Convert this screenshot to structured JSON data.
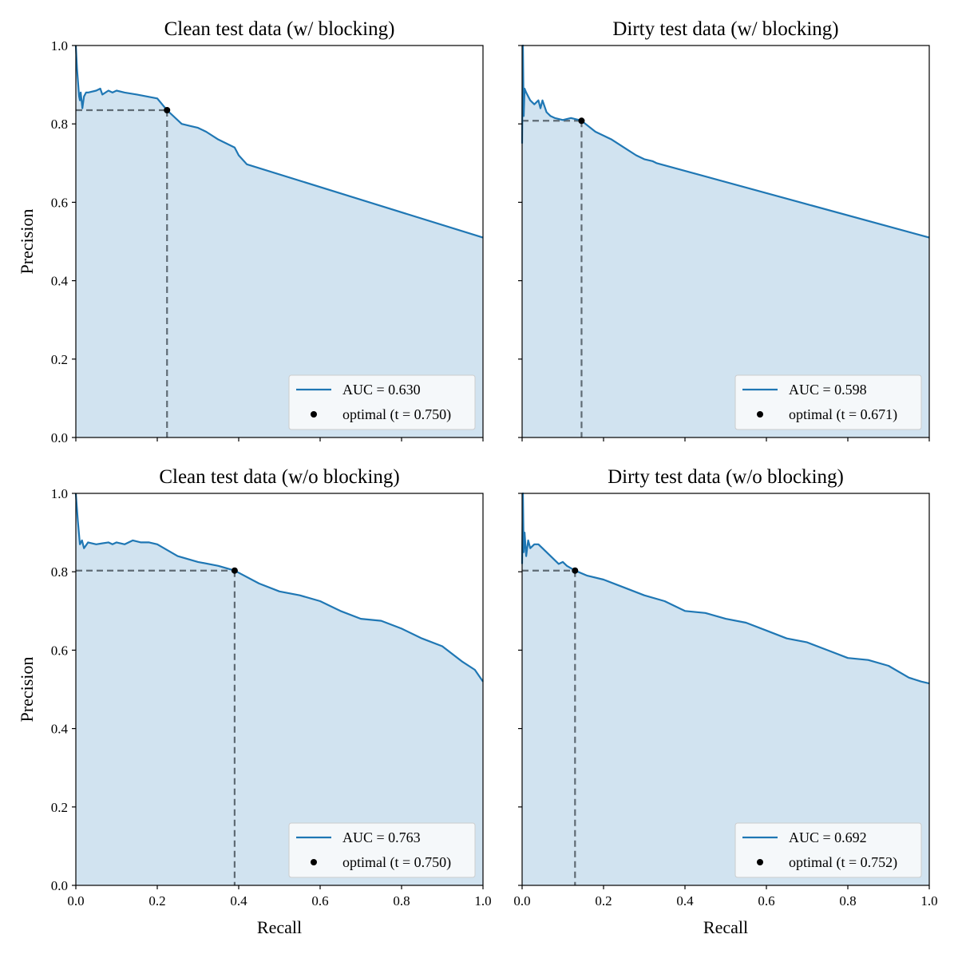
{
  "chart_data": [
    {
      "type": "area",
      "title": "Clean test data (w/ blocking)",
      "xlabel": "",
      "ylabel": "Precision",
      "xlim": [
        0,
        1
      ],
      "ylim": [
        0,
        1
      ],
      "xticks": [
        "0.0",
        "0.2",
        "0.4",
        "0.6",
        "0.8",
        "1.0"
      ],
      "yticks": [
        "0.0",
        "0.2",
        "0.4",
        "0.6",
        "0.8",
        "1.0"
      ],
      "show_xtick_labels": false,
      "show_ytick_labels": true,
      "legend_position": "lower-right",
      "curve": {
        "label": "AUC = 0.630",
        "color": "#1f77b4",
        "x": [
          0.0,
          0.003,
          0.008,
          0.01,
          0.012,
          0.016,
          0.02,
          0.025,
          0.03,
          0.05,
          0.06,
          0.065,
          0.08,
          0.09,
          0.1,
          0.12,
          0.15,
          0.2,
          0.224,
          0.26,
          0.28,
          0.3,
          0.32,
          0.35,
          0.37,
          0.38,
          0.39,
          0.4,
          0.42,
          1.0
        ],
        "y": [
          1.0,
          0.94,
          0.87,
          0.86,
          0.88,
          0.84,
          0.87,
          0.88,
          0.88,
          0.885,
          0.89,
          0.875,
          0.885,
          0.88,
          0.885,
          0.88,
          0.875,
          0.865,
          0.835,
          0.8,
          0.795,
          0.79,
          0.78,
          0.76,
          0.75,
          0.745,
          0.74,
          0.72,
          0.697,
          0.51
        ]
      },
      "optimal": {
        "label": "optimal (t = 0.750)",
        "x": 0.224,
        "y": 0.835
      }
    },
    {
      "type": "area",
      "title": "Dirty test data (w/ blocking)",
      "xlabel": "",
      "ylabel": "",
      "xlim": [
        0,
        1
      ],
      "ylim": [
        0,
        1
      ],
      "xticks": [
        "0.0",
        "0.2",
        "0.4",
        "0.6",
        "0.8",
        "1.0"
      ],
      "yticks": [
        "0.0",
        "0.2",
        "0.4",
        "0.6",
        "0.8",
        "1.0"
      ],
      "show_xtick_labels": false,
      "show_ytick_labels": false,
      "legend_position": "lower-right",
      "curve": {
        "label": "AUC = 0.598",
        "color": "#1f77b4",
        "x": [
          0.0,
          0.002,
          0.004,
          0.006,
          0.01,
          0.02,
          0.03,
          0.04,
          0.045,
          0.05,
          0.06,
          0.07,
          0.08,
          0.1,
          0.12,
          0.14,
          0.146,
          0.18,
          0.2,
          0.22,
          0.25,
          0.28,
          0.3,
          0.32,
          0.33,
          1.0
        ],
        "y": [
          0.75,
          1.0,
          0.82,
          0.89,
          0.88,
          0.86,
          0.85,
          0.86,
          0.84,
          0.86,
          0.83,
          0.82,
          0.815,
          0.81,
          0.815,
          0.81,
          0.808,
          0.78,
          0.77,
          0.76,
          0.74,
          0.72,
          0.71,
          0.705,
          0.7,
          0.51
        ]
      },
      "optimal": {
        "label": "optimal (t = 0.671)",
        "x": 0.146,
        "y": 0.808
      }
    },
    {
      "type": "area",
      "title": "Clean test data (w/o blocking)",
      "xlabel": "Recall",
      "ylabel": "Precision",
      "xlim": [
        0,
        1
      ],
      "ylim": [
        0,
        1
      ],
      "xticks": [
        "0.0",
        "0.2",
        "0.4",
        "0.6",
        "0.8",
        "1.0"
      ],
      "yticks": [
        "0.0",
        "0.2",
        "0.4",
        "0.6",
        "0.8",
        "1.0"
      ],
      "show_xtick_labels": true,
      "show_ytick_labels": true,
      "legend_position": "lower-right",
      "curve": {
        "label": "AUC = 0.763",
        "color": "#1f77b4",
        "x": [
          0.0,
          0.005,
          0.01,
          0.015,
          0.02,
          0.03,
          0.05,
          0.08,
          0.09,
          0.1,
          0.12,
          0.14,
          0.16,
          0.18,
          0.2,
          0.25,
          0.3,
          0.35,
          0.39,
          0.45,
          0.5,
          0.55,
          0.6,
          0.65,
          0.7,
          0.75,
          0.8,
          0.85,
          0.9,
          0.95,
          0.98,
          1.0
        ],
        "y": [
          1.0,
          0.93,
          0.87,
          0.88,
          0.86,
          0.875,
          0.87,
          0.875,
          0.87,
          0.875,
          0.87,
          0.88,
          0.875,
          0.875,
          0.87,
          0.84,
          0.825,
          0.815,
          0.803,
          0.77,
          0.75,
          0.74,
          0.725,
          0.7,
          0.68,
          0.675,
          0.655,
          0.63,
          0.61,
          0.57,
          0.55,
          0.52
        ]
      },
      "optimal": {
        "label": "optimal (t = 0.750)",
        "x": 0.39,
        "y": 0.803
      }
    },
    {
      "type": "area",
      "title": "Dirty test data (w/o blocking)",
      "xlabel": "Recall",
      "ylabel": "",
      "xlim": [
        0,
        1
      ],
      "ylim": [
        0,
        1
      ],
      "xticks": [
        "0.0",
        "0.2",
        "0.4",
        "0.6",
        "0.8",
        "1.0"
      ],
      "yticks": [
        "0.0",
        "0.2",
        "0.4",
        "0.6",
        "0.8",
        "1.0"
      ],
      "show_xtick_labels": true,
      "show_ytick_labels": false,
      "legend_position": "lower-right",
      "curve": {
        "label": "AUC = 0.692",
        "color": "#1f77b4",
        "x": [
          0.0,
          0.002,
          0.004,
          0.006,
          0.01,
          0.015,
          0.02,
          0.03,
          0.04,
          0.05,
          0.07,
          0.09,
          0.1,
          0.11,
          0.13,
          0.16,
          0.2,
          0.25,
          0.3,
          0.35,
          0.4,
          0.45,
          0.5,
          0.55,
          0.6,
          0.65,
          0.7,
          0.75,
          0.8,
          0.85,
          0.9,
          0.95,
          0.98,
          1.0
        ],
        "y": [
          0.82,
          1.0,
          0.85,
          0.9,
          0.84,
          0.88,
          0.86,
          0.87,
          0.87,
          0.86,
          0.84,
          0.82,
          0.825,
          0.815,
          0.803,
          0.79,
          0.78,
          0.76,
          0.74,
          0.725,
          0.7,
          0.695,
          0.68,
          0.67,
          0.65,
          0.63,
          0.62,
          0.6,
          0.58,
          0.575,
          0.56,
          0.53,
          0.52,
          0.515
        ]
      },
      "optimal": {
        "label": "optimal (t = 0.752)",
        "x": 0.13,
        "y": 0.803
      }
    }
  ],
  "style": {
    "line_color": "#1f77b4",
    "fill_color": "#d1e3f0",
    "guide_color": "#5f6b74",
    "marker_color": "#000000",
    "legend_bg": "#f5f8fa",
    "legend_border": "#cccccc"
  }
}
